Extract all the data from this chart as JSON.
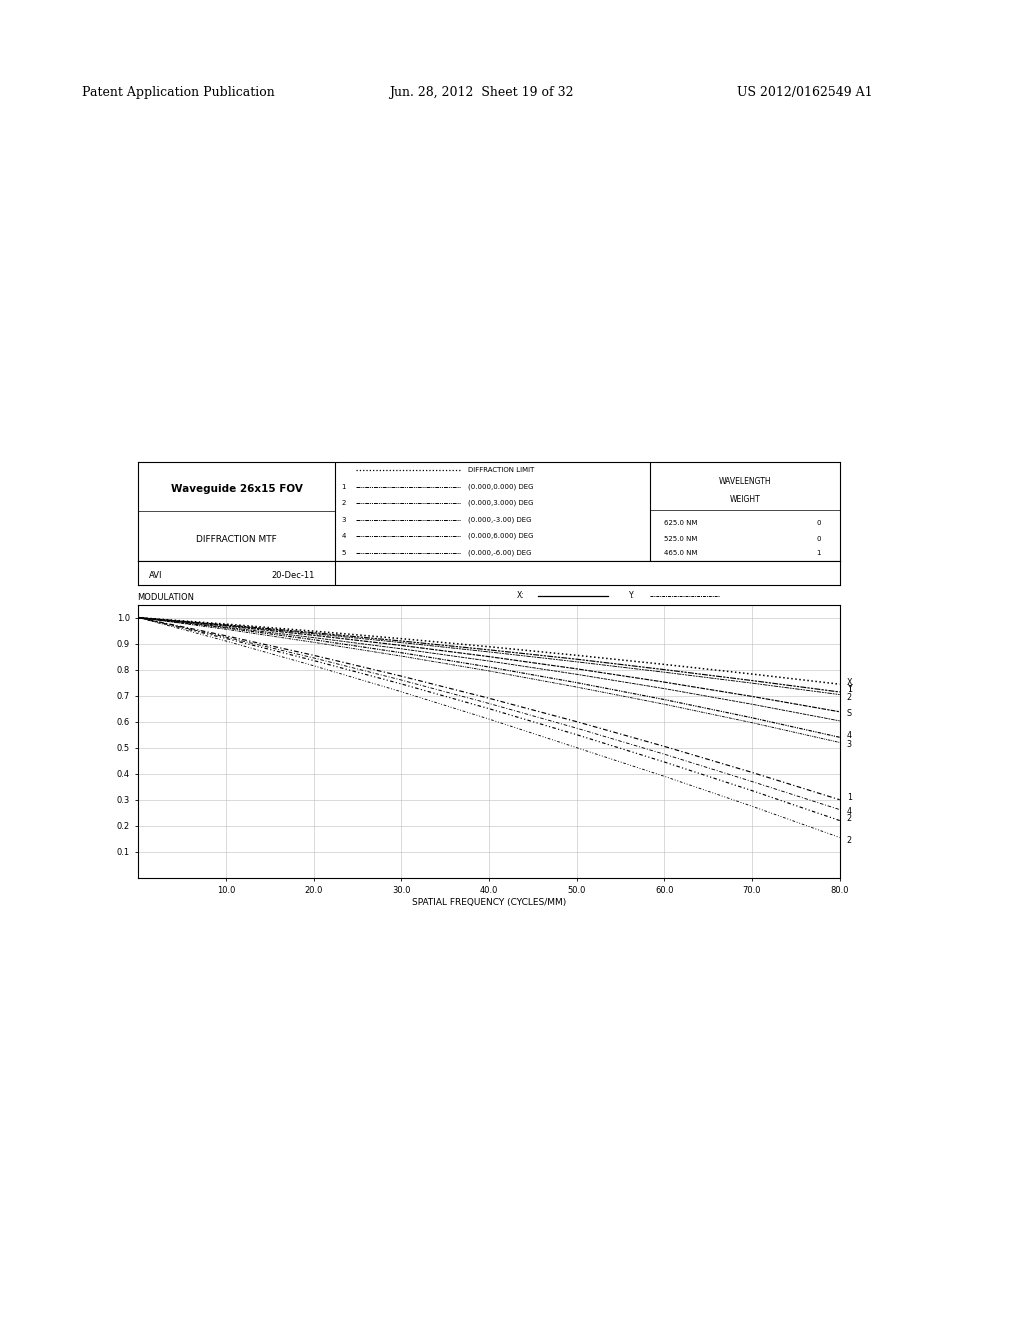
{
  "title": "Waveguide 26x15 FOV",
  "subtitle": "DIFFRACTION MTF",
  "author": "AVI",
  "date": "20-Dec-11",
  "xlabel": "SPATIAL FREQUENCY (CYCLES/MM)",
  "ylabel": "MODULATION",
  "xlim": [
    0,
    80.0
  ],
  "ylim": [
    0.0,
    1.05
  ],
  "xticks": [
    10.0,
    20.0,
    30.0,
    40.0,
    50.0,
    60.0,
    70.0,
    80.0
  ],
  "yticks": [
    0.1,
    0.2,
    0.3,
    0.4,
    0.5,
    0.6,
    0.7,
    0.8,
    0.9,
    1.0
  ],
  "patent_line1": "Patent Application Publication",
  "patent_line2": "Jun. 28, 2012  Sheet 19 of 32",
  "patent_line3": "US 2012/0162549 A1",
  "freq": [
    0,
    10,
    20,
    30,
    40,
    50,
    60,
    70,
    80
  ],
  "curves": {
    "diffraction_limit": [
      1.0,
      0.975,
      0.948,
      0.919,
      0.888,
      0.855,
      0.82,
      0.783,
      0.744
    ],
    "c1x": [
      1.0,
      0.972,
      0.942,
      0.91,
      0.876,
      0.84,
      0.8,
      0.758,
      0.714
    ],
    "c1y": [
      1.0,
      0.97,
      0.938,
      0.904,
      0.868,
      0.83,
      0.79,
      0.748,
      0.704
    ],
    "c2x": [
      1.0,
      0.92,
      0.835,
      0.745,
      0.65,
      0.55,
      0.445,
      0.335,
      0.22
    ],
    "c2y": [
      1.0,
      0.91,
      0.815,
      0.715,
      0.61,
      0.5,
      0.39,
      0.275,
      0.155
    ],
    "c3x": [
      1.0,
      0.96,
      0.915,
      0.865,
      0.81,
      0.75,
      0.685,
      0.615,
      0.54
    ],
    "c3y": [
      1.0,
      0.955,
      0.905,
      0.852,
      0.795,
      0.733,
      0.667,
      0.596,
      0.52
    ],
    "c4x": [
      1.0,
      0.93,
      0.855,
      0.775,
      0.69,
      0.6,
      0.505,
      0.405,
      0.3
    ],
    "c4y": [
      1.0,
      0.925,
      0.845,
      0.76,
      0.67,
      0.575,
      0.475,
      0.37,
      0.262
    ],
    "c5x": [
      1.0,
      0.968,
      0.932,
      0.893,
      0.85,
      0.803,
      0.752,
      0.697,
      0.638
    ],
    "c5y": [
      1.0,
      0.963,
      0.923,
      0.88,
      0.833,
      0.782,
      0.727,
      0.667,
      0.603
    ]
  }
}
